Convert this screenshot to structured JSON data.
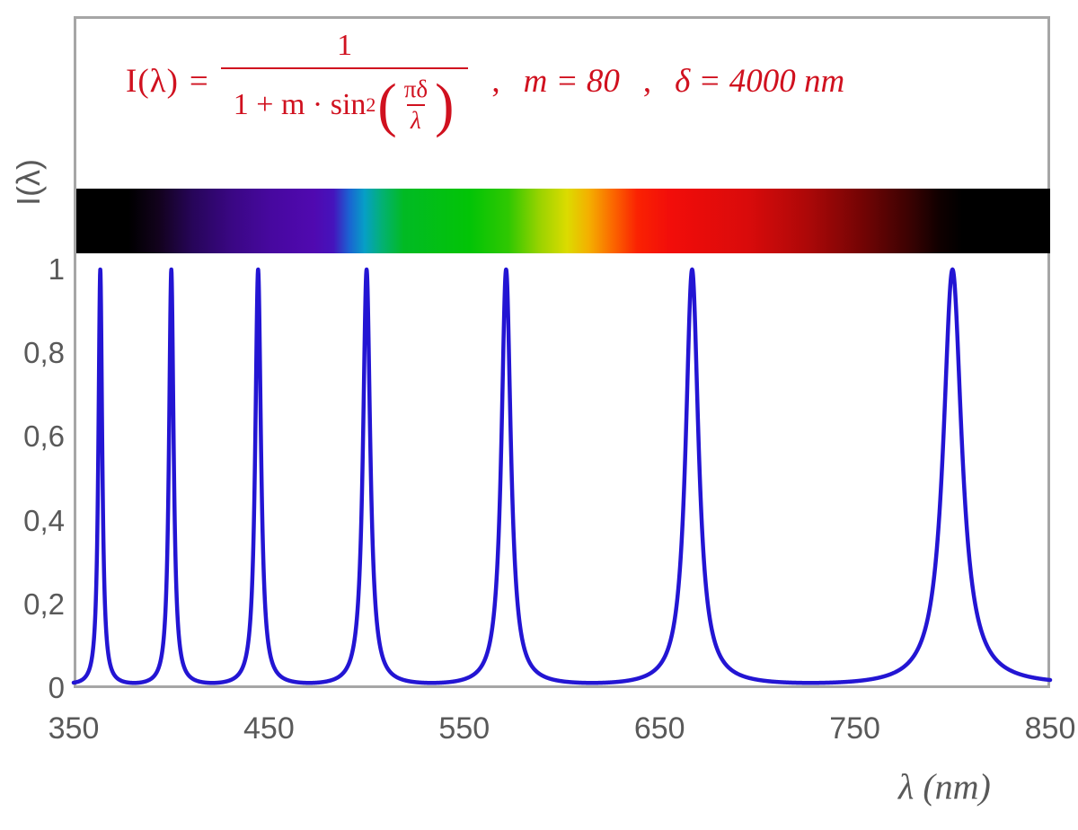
{
  "colors": {
    "formula_red": "#d0111f",
    "curve_blue": "#2315d3",
    "tick_gray": "#595959",
    "frame_gray": "#a6a6a6"
  },
  "formula": {
    "lhs": "I(λ)",
    "equals": "=",
    "numerator": "1",
    "denominator_prefix": "1 + m · sin",
    "denominator_sup": "2",
    "inner_numerator": "πδ",
    "inner_denominator": "λ",
    "paren_open": "(",
    "paren_close": ")",
    "comma1": ",",
    "param_m": "m = 80",
    "comma2": ",",
    "param_delta": "δ = 4000 nm"
  },
  "axes": {
    "y_title": "I(λ)",
    "x_title": "λ  (nm)"
  },
  "chart_data": {
    "type": "line",
    "title": "I(λ) = 1 / (1 + m·sin²(πδ/λ)) ,  m = 80 ,  δ = 4000 nm",
    "xlabel": "λ (nm)",
    "ylabel": "I(λ)",
    "x_range": [
      350,
      850
    ],
    "y_range": [
      0,
      1
    ],
    "grid": false,
    "legend": null,
    "function": {
      "form": "I(lambda) = 1 / (1 + m * sin^2(pi*delta/lambda))",
      "m": 80,
      "delta_nm": 4000
    },
    "peaks_nm": [
      363.636,
      400,
      444.444,
      500,
      571.429,
      666.667,
      800
    ],
    "peak_value": 1,
    "baseline_value": 0.0123,
    "samples_per_nm": 8,
    "curve_color": "#2315d3",
    "curve_width": 4.5,
    "x_ticks": [
      {
        "value": 350,
        "label": "350"
      },
      {
        "value": 450,
        "label": "450"
      },
      {
        "value": 550,
        "label": "550"
      },
      {
        "value": 650,
        "label": "650"
      },
      {
        "value": 750,
        "label": "750"
      },
      {
        "value": 850,
        "label": "850"
      }
    ],
    "y_ticks": [
      {
        "value": 1,
        "label": "1"
      },
      {
        "value": 0.8,
        "label": "0,8"
      },
      {
        "value": 0.6,
        "label": "0,6"
      },
      {
        "value": 0.4,
        "label": "0,4"
      },
      {
        "value": 0.2,
        "label": "0,2"
      },
      {
        "value": 0,
        "label": "0"
      }
    ],
    "spectrum_bar": {
      "wavelength_range_nm": [
        350,
        850
      ],
      "stops": [
        [
          350,
          "#000000"
        ],
        [
          377,
          "#000000"
        ],
        [
          392,
          "#12021c"
        ],
        [
          410,
          "#27055a"
        ],
        [
          430,
          "#3a0784"
        ],
        [
          450,
          "#47089f"
        ],
        [
          472,
          "#5009b0"
        ],
        [
          482,
          "#4513bc"
        ],
        [
          490,
          "#1b62d2"
        ],
        [
          498,
          "#069fc6"
        ],
        [
          507,
          "#03b173"
        ],
        [
          518,
          "#01ba24"
        ],
        [
          552,
          "#02c406"
        ],
        [
          572,
          "#30c801"
        ],
        [
          588,
          "#9ad300"
        ],
        [
          602,
          "#dcdb00"
        ],
        [
          613,
          "#f4b000"
        ],
        [
          625,
          "#fb6a00"
        ],
        [
          638,
          "#fa2202"
        ],
        [
          655,
          "#f20d0a"
        ],
        [
          695,
          "#d90b0b"
        ],
        [
          725,
          "#ad0808"
        ],
        [
          755,
          "#700404"
        ],
        [
          778,
          "#3a0202"
        ],
        [
          793,
          "#100000"
        ],
        [
          805,
          "#000000"
        ],
        [
          850,
          "#000000"
        ]
      ]
    }
  }
}
